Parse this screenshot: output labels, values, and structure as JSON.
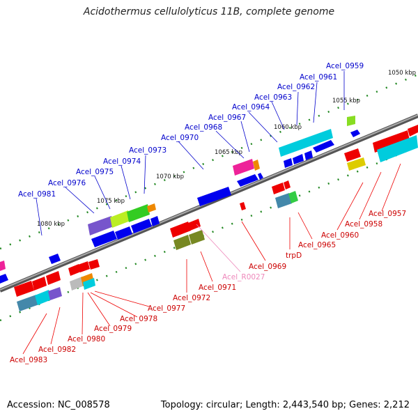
{
  "title": "Acidothermus cellulolyticus 11B, complete genome",
  "footer": {
    "accession": "Accession: NC_008578",
    "summary": "Topology: circular; Length: 2,443,540 bp; Genes: 2,212"
  },
  "scale_labels": [
    "1050 kbp",
    "1055 kbp",
    "1060 kbp",
    "1065 kbp",
    "1070 kbp",
    "1075 kbp",
    "1080 kbp"
  ],
  "top_genes": [
    "Acel_0959",
    "Acel_0961",
    "Acel_0962",
    "Acel_0963",
    "Acel_0964",
    "Acel_0967",
    "Acel_0968",
    "Acel_0970",
    "Acel_0973",
    "Acel_0974",
    "Acel_0975",
    "Acel_0976",
    "Acel_0981"
  ],
  "bottom_genes": [
    "Acel_0957",
    "Acel_0958",
    "Acel_0960",
    "Acel_0965",
    "trpD",
    "Acel_0969",
    "Acel_0971",
    "Acel_0972",
    "Acel_0977",
    "Acel_0978",
    "Acel_0979",
    "Acel_0980",
    "Acel_0982",
    "Acel_0983"
  ],
  "rna_genes": [
    "Acel_R0027"
  ],
  "colors": {
    "forward": "#0000ee",
    "reverse": "#ee0000",
    "top_label": "#0000cc",
    "bottom_label": "#cc0000",
    "rna": "#ee88bb",
    "backbone": "#888888",
    "tick": "#228822"
  }
}
